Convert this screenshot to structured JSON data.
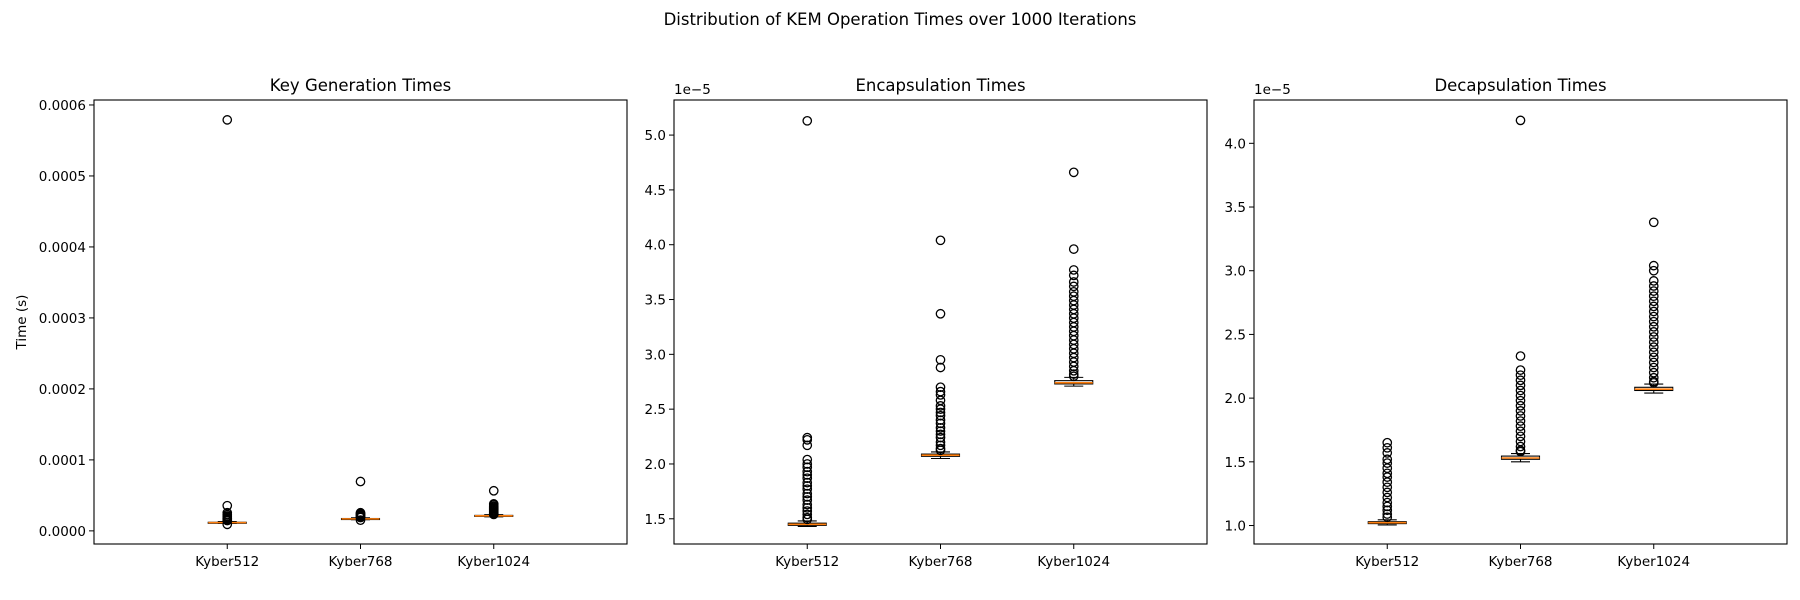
{
  "figure_title": "Distribution of KEM Operation Times over 1000 Iterations",
  "chart_data": [
    {
      "type": "box",
      "title": "Key Generation Times",
      "ylabel": "Time (s)",
      "offset_label": "",
      "scale": 1,
      "categories": [
        "Kyber512",
        "Kyber768",
        "Kyber1024"
      ],
      "ylim": [
        -1.85e-05,
        0.000607
      ],
      "yticks": [
        0.0,
        0.0001,
        0.0002,
        0.0003,
        0.0004,
        0.0005,
        0.0006
      ],
      "ytick_labels": [
        "0.0000",
        "0.0001",
        "0.0002",
        "0.0003",
        "0.0004",
        "0.0005",
        "0.0006"
      ],
      "boxes": [
        {
          "whislo": 1.05e-05,
          "q1": 1.12e-05,
          "med": 1.16e-05,
          "q3": 1.21e-05,
          "whishi": 1.32e-05,
          "fliers": [
            0.000579,
            3.55e-05,
            2.55e-05,
            2.3e-05,
            2.1e-05,
            1.95e-05,
            1.8e-05,
            1.7e-05,
            1.6e-05,
            1.52e-05,
            1.45e-05,
            9.2e-06
          ]
        },
        {
          "whislo": 1.58e-05,
          "q1": 1.65e-05,
          "med": 1.69e-05,
          "q3": 1.74e-05,
          "whishi": 1.84e-05,
          "fliers": [
            6.95e-05,
            2.55e-05,
            2.45e-05,
            2.35e-05,
            2.25e-05,
            2.15e-05,
            2.05e-05,
            1.95e-05,
            1.88e-05,
            1.51e-05
          ]
        },
        {
          "whislo": 1.98e-05,
          "q1": 2.08e-05,
          "med": 2.12e-05,
          "q3": 2.18e-05,
          "whishi": 2.28e-05,
          "fliers": [
            5.65e-05,
            3.8e-05,
            3.65e-05,
            3.45e-05,
            3.3e-05,
            3.15e-05,
            3e-05,
            2.85e-05,
            2.7e-05,
            2.58e-05,
            2.48e-05,
            2.38e-05,
            2.32e-05
          ]
        }
      ]
    },
    {
      "type": "box",
      "title": "Encapsulation Times",
      "ylabel": "",
      "offset_label": "1e−5",
      "scale": 1e-05,
      "categories": [
        "Kyber512",
        "Kyber768",
        "Kyber1024"
      ],
      "ylim": [
        1.27,
        5.32
      ],
      "yticks": [
        1.5,
        2.0,
        2.5,
        3.0,
        3.5,
        4.0,
        4.5,
        5.0
      ],
      "ytick_labels": [
        "1.5",
        "2.0",
        "2.5",
        "3.0",
        "3.5",
        "4.0",
        "4.5",
        "5.0"
      ],
      "boxes": [
        {
          "whislo": 1.43,
          "q1": 1.44,
          "med": 1.45,
          "q3": 1.46,
          "whishi": 1.48,
          "fliers": [
            5.13,
            2.24,
            2.22,
            2.17,
            2.04,
            2.0,
            1.97,
            1.93,
            1.9,
            1.87,
            1.83,
            1.8,
            1.77,
            1.73,
            1.7,
            1.67,
            1.63,
            1.6,
            1.57,
            1.54,
            1.51,
            1.495
          ]
        },
        {
          "whislo": 2.05,
          "q1": 2.07,
          "med": 2.08,
          "q3": 2.09,
          "whishi": 2.11,
          "fliers": [
            4.04,
            3.37,
            2.95,
            2.88,
            2.7,
            2.66,
            2.63,
            2.58,
            2.53,
            2.5,
            2.47,
            2.44,
            2.4,
            2.37,
            2.33,
            2.3,
            2.27,
            2.24,
            2.2,
            2.17,
            2.14,
            2.125
          ]
        },
        {
          "whislo": 2.71,
          "q1": 2.73,
          "med": 2.74,
          "q3": 2.76,
          "whishi": 2.79,
          "fliers": [
            4.66,
            3.96,
            3.77,
            3.72,
            3.66,
            3.62,
            3.57,
            3.53,
            3.49,
            3.45,
            3.41,
            3.37,
            3.33,
            3.29,
            3.25,
            3.21,
            3.17,
            3.13,
            3.09,
            3.05,
            3.01,
            2.97,
            2.93,
            2.89,
            2.85,
            2.82,
            2.8
          ]
        }
      ]
    },
    {
      "type": "box",
      "title": "Decapsulation Times",
      "ylabel": "",
      "offset_label": "1e−5",
      "scale": 1e-05,
      "categories": [
        "Kyber512",
        "Kyber768",
        "Kyber1024"
      ],
      "ylim": [
        0.855,
        4.34
      ],
      "yticks": [
        1.0,
        1.5,
        2.0,
        2.5,
        3.0,
        3.5,
        4.0
      ],
      "ytick_labels": [
        "1.0",
        "1.5",
        "2.0",
        "2.5",
        "3.0",
        "3.5",
        "4.0"
      ],
      "boxes": [
        {
          "whislo": 1.005,
          "q1": 1.015,
          "med": 1.022,
          "q3": 1.03,
          "whishi": 1.045,
          "fliers": [
            1.65,
            1.61,
            1.57,
            1.52,
            1.49,
            1.45,
            1.41,
            1.38,
            1.34,
            1.3,
            1.26,
            1.22,
            1.18,
            1.15,
            1.12,
            1.09,
            1.065
          ]
        },
        {
          "whislo": 1.5,
          "q1": 1.52,
          "med": 1.53,
          "q3": 1.545,
          "whishi": 1.565,
          "fliers": [
            4.18,
            2.33,
            2.22,
            2.18,
            2.14,
            2.1,
            2.06,
            2.02,
            1.98,
            1.94,
            1.9,
            1.86,
            1.82,
            1.78,
            1.74,
            1.7,
            1.66,
            1.62,
            1.59,
            1.58
          ]
        },
        {
          "whislo": 2.04,
          "q1": 2.06,
          "med": 2.07,
          "q3": 2.085,
          "whishi": 2.11,
          "fliers": [
            3.38,
            3.04,
            3.0,
            2.92,
            2.88,
            2.84,
            2.8,
            2.76,
            2.72,
            2.68,
            2.64,
            2.6,
            2.56,
            2.52,
            2.48,
            2.44,
            2.4,
            2.36,
            2.32,
            2.28,
            2.24,
            2.2,
            2.16,
            2.13,
            2.12
          ]
        }
      ]
    }
  ]
}
